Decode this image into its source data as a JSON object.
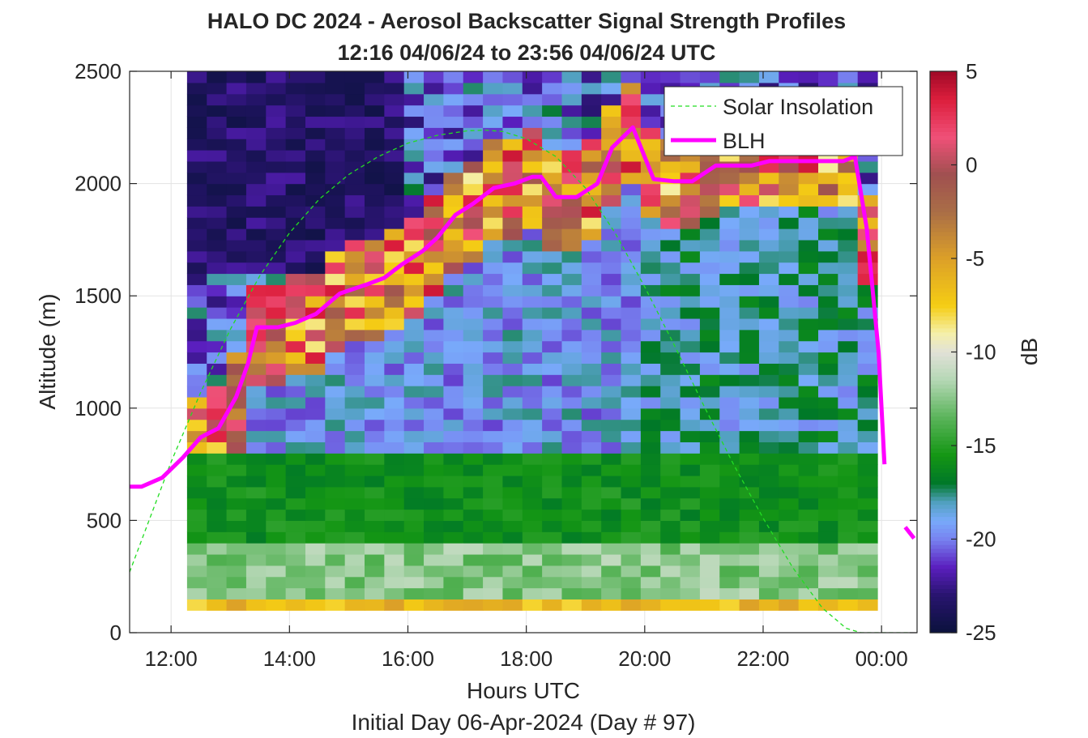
{
  "chart_data": {
    "type": "heatmap",
    "title": "HALO DC 2024 - Aerosol Backscatter Signal Strength Profiles",
    "subtitle": "12:16 04/06/24 to 23:56 04/06/24  UTC",
    "xlabel": "Hours UTC",
    "xlabel2": "Initial Day 06-Apr-2024 (Day # 97)",
    "ylabel": "Altitude (m)",
    "colorbar_label": "dB",
    "xlim": [
      11.3,
      24.6
    ],
    "ylim": [
      0,
      2500
    ],
    "clim": [
      -25,
      5
    ],
    "x_ticks": [
      {
        "value": 12,
        "label": "12:00"
      },
      {
        "value": 14,
        "label": "14:00"
      },
      {
        "value": 16,
        "label": "16:00"
      },
      {
        "value": 18,
        "label": "18:00"
      },
      {
        "value": 20,
        "label": "20:00"
      },
      {
        "value": 22,
        "label": "22:00"
      },
      {
        "value": 24,
        "label": "00:00"
      }
    ],
    "y_ticks": [
      {
        "value": 0,
        "label": "0"
      },
      {
        "value": 500,
        "label": "500"
      },
      {
        "value": 1000,
        "label": "1000"
      },
      {
        "value": 1500,
        "label": "1500"
      },
      {
        "value": 2000,
        "label": "2000"
      },
      {
        "value": 2500,
        "label": "2500"
      }
    ],
    "colorbar_ticks": [
      {
        "value": 5,
        "label": "5"
      },
      {
        "value": 0,
        "label": "0"
      },
      {
        "value": -5,
        "label": "-5"
      },
      {
        "value": -10,
        "label": "-10"
      },
      {
        "value": -15,
        "label": "-15"
      },
      {
        "value": -20,
        "label": "-20"
      },
      {
        "value": -25,
        "label": "-25"
      }
    ],
    "grid": true,
    "legend_position": "top-right",
    "heatmap": {
      "x_start": 12.27,
      "x_end": 23.93,
      "time_bins": 35,
      "altitude_bins": [
        100,
        150,
        200,
        250,
        300,
        350,
        400,
        450,
        500,
        550,
        600,
        650,
        700,
        750,
        800,
        850,
        900,
        950,
        1000,
        1050,
        1100,
        1150,
        1200,
        1250,
        1300,
        1350,
        1400,
        1450,
        1500,
        1550,
        1600,
        1650,
        1700,
        1750,
        1800,
        1850,
        1900,
        1950,
        2000,
        2050,
        2100,
        2150,
        2200,
        2250,
        2300,
        2350,
        2400,
        2450,
        2500
      ],
      "value_regions": [
        {
          "description_free": true,
          "y_max": 150,
          "value_db": -7
        },
        {
          "y_max": 400,
          "value_db": -14
        },
        {
          "y_max": 800,
          "value_db": -16
        },
        {
          "y_max": 1200,
          "value_db": -20
        }
      ]
    },
    "series": [
      {
        "name": "Solar Insolation",
        "color": "#22dd22",
        "style": "dashed",
        "x": [
          11.3,
          11.6,
          12.0,
          12.5,
          13.0,
          13.5,
          14.0,
          14.5,
          15.0,
          15.5,
          16.0,
          16.5,
          17.0,
          17.3,
          17.6,
          18.0,
          18.5,
          19.0,
          19.5,
          20.0,
          20.5,
          21.0,
          21.5,
          22.0,
          22.5,
          23.0,
          23.4,
          23.65,
          24.0,
          24.5
        ],
        "y": [
          270,
          480,
          760,
          1070,
          1350,
          1590,
          1780,
          1930,
          2040,
          2120,
          2180,
          2215,
          2235,
          2238,
          2232,
          2200,
          2120,
          1980,
          1780,
          1540,
          1280,
          1010,
          750,
          510,
          290,
          110,
          20,
          0,
          0,
          0
        ]
      },
      {
        "name": "BLH",
        "color": "#ff00ff",
        "style": "solid",
        "x": [
          11.3,
          11.5,
          11.85,
          12.2,
          12.5,
          12.8,
          13.1,
          13.3,
          13.45,
          13.8,
          14.1,
          14.45,
          14.85,
          15.3,
          15.6,
          15.9,
          16.25,
          16.5,
          16.8,
          17.1,
          17.45,
          17.8,
          18.1,
          18.25,
          18.5,
          18.85,
          19.2,
          19.45,
          19.8,
          20.15,
          20.5,
          20.8,
          21.2,
          21.5,
          21.8,
          22.1,
          22.5,
          22.8,
          23.1,
          23.35,
          23.55,
          23.75,
          23.95,
          24.05
        ],
        "y": [
          650,
          650,
          690,
          780,
          870,
          910,
          1050,
          1200,
          1360,
          1360,
          1380,
          1420,
          1510,
          1550,
          1580,
          1640,
          1700,
          1760,
          1860,
          1910,
          1980,
          2000,
          2030,
          2030,
          1940,
          1940,
          2000,
          2160,
          2250,
          2020,
          2010,
          2010,
          2080,
          2080,
          2080,
          2100,
          2100,
          2100,
          2100,
          2100,
          2120,
          1800,
          1250,
          750
        ]
      },
      {
        "name": "",
        "color": "#ff00ff",
        "style": "solid",
        "x": [
          24.4,
          24.55
        ],
        "y": [
          470,
          420
        ]
      }
    ]
  }
}
